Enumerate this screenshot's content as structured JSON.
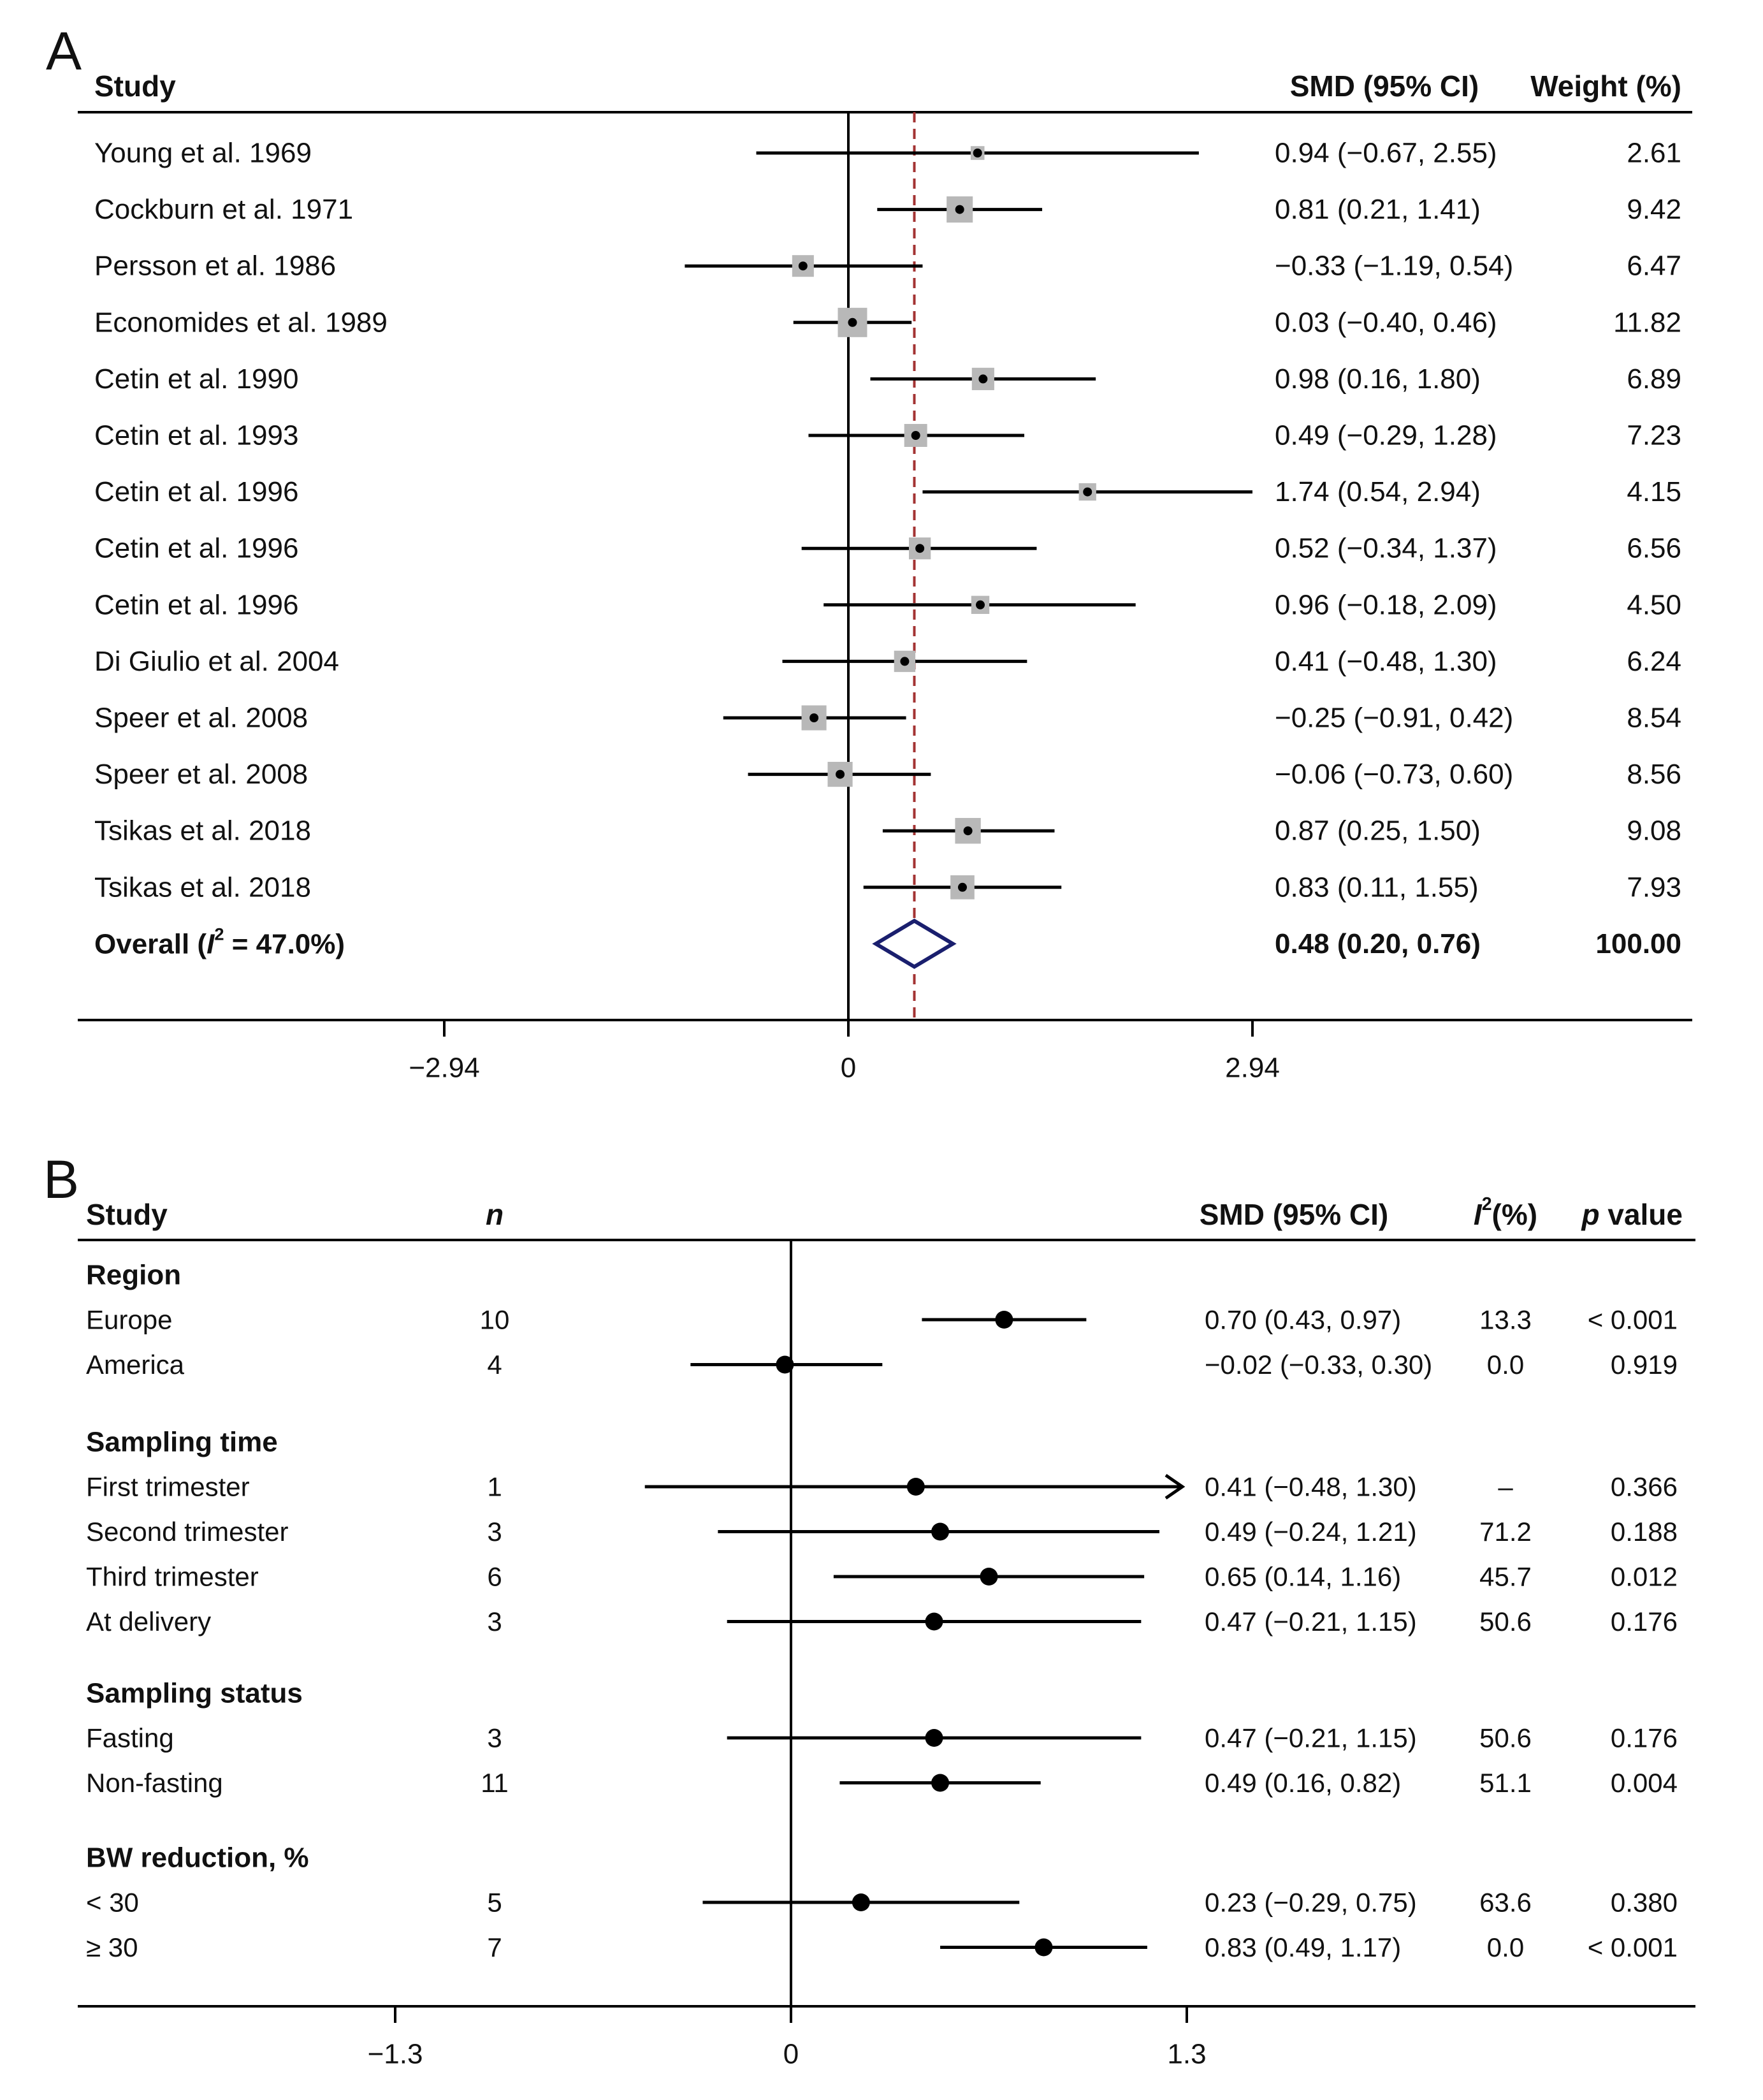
{
  "chart_data": [
    {
      "type": "forest",
      "panel_label": "A",
      "columns": {
        "study": "Study",
        "smd": "SMD (95% CI)",
        "weight": "Weight (%)"
      },
      "xaxis": {
        "ticks": [
          -2.94,
          0,
          2.94
        ],
        "tick_labels": [
          "−2.94",
          "0",
          "2.94"
        ],
        "xlim": [
          -5.64,
          6.12
        ]
      },
      "null_line": 0,
      "pooled_line": 0.48,
      "rows": [
        {
          "study": "Young et al. 1969",
          "smd": 0.94,
          "lo": -0.67,
          "hi": 2.55,
          "ci_text": "0.94 (−0.67, 2.55)",
          "weight": 2.61,
          "weight_text": "2.61"
        },
        {
          "study": "Cockburn et al. 1971",
          "smd": 0.81,
          "lo": 0.21,
          "hi": 1.41,
          "ci_text": "0.81 (0.21, 1.41)",
          "weight": 9.42,
          "weight_text": "9.42"
        },
        {
          "study": "Persson et al. 1986",
          "smd": -0.33,
          "lo": -1.19,
          "hi": 0.54,
          "ci_text": "−0.33 (−1.19, 0.54)",
          "weight": 6.47,
          "weight_text": "6.47"
        },
        {
          "study": "Economides et al. 1989",
          "smd": 0.03,
          "lo": -0.4,
          "hi": 0.46,
          "ci_text": "0.03 (−0.40, 0.46)",
          "weight": 11.82,
          "weight_text": "11.82"
        },
        {
          "study": "Cetin et al. 1990",
          "smd": 0.98,
          "lo": 0.16,
          "hi": 1.8,
          "ci_text": "0.98 (0.16, 1.80)",
          "weight": 6.89,
          "weight_text": "6.89"
        },
        {
          "study": "Cetin et al. 1993",
          "smd": 0.49,
          "lo": -0.29,
          "hi": 1.28,
          "ci_text": "0.49 (−0.29, 1.28)",
          "weight": 7.23,
          "weight_text": "7.23"
        },
        {
          "study": "Cetin et al. 1996",
          "smd": 1.74,
          "lo": 0.54,
          "hi": 2.94,
          "ci_text": "1.74 (0.54, 2.94)",
          "weight": 4.15,
          "weight_text": "4.15"
        },
        {
          "study": "Cetin et al. 1996",
          "smd": 0.52,
          "lo": -0.34,
          "hi": 1.37,
          "ci_text": "0.52 (−0.34, 1.37)",
          "weight": 6.56,
          "weight_text": "6.56"
        },
        {
          "study": "Cetin et al. 1996",
          "smd": 0.96,
          "lo": -0.18,
          "hi": 2.09,
          "ci_text": "0.96 (−0.18, 2.09)",
          "weight": 4.5,
          "weight_text": "4.50"
        },
        {
          "study": "Di Giulio et al. 2004",
          "smd": 0.41,
          "lo": -0.48,
          "hi": 1.3,
          "ci_text": "0.41 (−0.48, 1.30)",
          "weight": 6.24,
          "weight_text": "6.24"
        },
        {
          "study": "Speer et al. 2008",
          "smd": -0.25,
          "lo": -0.91,
          "hi": 0.42,
          "ci_text": "−0.25 (−0.91, 0.42)",
          "weight": 8.54,
          "weight_text": "8.54"
        },
        {
          "study": "Speer et al. 2008",
          "smd": -0.06,
          "lo": -0.73,
          "hi": 0.6,
          "ci_text": "−0.06 (−0.73, 0.60)",
          "weight": 8.56,
          "weight_text": "8.56"
        },
        {
          "study": "Tsikas et al. 2018",
          "smd": 0.87,
          "lo": 0.25,
          "hi": 1.5,
          "ci_text": "0.87 (0.25, 1.50)",
          "weight": 9.08,
          "weight_text": "9.08"
        },
        {
          "study": "Tsikas et al. 2018",
          "smd": 0.83,
          "lo": 0.11,
          "hi": 1.55,
          "ci_text": "0.83 (0.11, 1.55)",
          "weight": 7.93,
          "weight_text": "7.93"
        }
      ],
      "overall": {
        "label_prefix": "Overall",
        "i2_symbol": "I",
        "i2_sup": "2",
        "i2_rest": " = 47.0%)",
        "smd": 0.48,
        "lo": 0.2,
        "hi": 0.76,
        "ci_text": "0.48 (0.20, 0.76)",
        "weight_text": "100.00"
      },
      "colors": {
        "box": "#b8b8b8",
        "line": "#000000",
        "pooled_line": "#a33333",
        "diamond": "#1a1f6e"
      }
    },
    {
      "type": "forest",
      "panel_label": "B",
      "columns": {
        "study": "Study",
        "n": "n",
        "smd": "SMD (95% CI)",
        "i2_symbol": "I",
        "i2_sup": "2",
        "i2_rest": "(%)",
        "p_italic": "p",
        "p_rest": " value"
      },
      "xaxis": {
        "ticks": [
          -1.3,
          0,
          1.3
        ],
        "tick_labels": [
          "−1.3",
          "0",
          "1.3"
        ],
        "xlim": [
          -2.36,
          3.0
        ]
      },
      "null_line": 0,
      "groups": [
        {
          "title": "Region",
          "rows": [
            {
              "label": "Europe",
              "n": "10",
              "smd": 0.7,
              "lo": 0.43,
              "hi": 0.97,
              "ci_text": "0.70 (0.43, 0.97)",
              "i2": "13.3",
              "p": "< 0.001"
            },
            {
              "label": "America",
              "n": "4",
              "smd": -0.02,
              "lo": -0.33,
              "hi": 0.3,
              "ci_text": "−0.02 (−0.33, 0.30)",
              "i2": "0.0",
              "p": "0.919"
            }
          ]
        },
        {
          "title": "Sampling time",
          "rows": [
            {
              "label": "First trimester",
              "n": "1",
              "smd": 0.41,
              "lo": -0.48,
              "hi": 1.3,
              "ci_text": "0.41 (−0.48, 1.30)",
              "i2": "–",
              "p": "0.366",
              "arrow": true
            },
            {
              "label": "Second trimester",
              "n": "3",
              "smd": 0.49,
              "lo": -0.24,
              "hi": 1.21,
              "ci_text": "0.49 (−0.24, 1.21)",
              "i2": "71.2",
              "p": "0.188"
            },
            {
              "label": "Third trimester",
              "n": "6",
              "smd": 0.65,
              "lo": 0.14,
              "hi": 1.16,
              "ci_text": "0.65 (0.14, 1.16)",
              "i2": "45.7",
              "p": "0.012"
            },
            {
              "label": "At delivery",
              "n": "3",
              "smd": 0.47,
              "lo": -0.21,
              "hi": 1.15,
              "ci_text": "0.47 (−0.21, 1.15)",
              "i2": "50.6",
              "p": "0.176"
            }
          ]
        },
        {
          "title": "Sampling status",
          "rows": [
            {
              "label": "Fasting",
              "n": "3",
              "smd": 0.47,
              "lo": -0.21,
              "hi": 1.15,
              "ci_text": "0.47 (−0.21, 1.15)",
              "i2": "50.6",
              "p": "0.176"
            },
            {
              "label": "Non-fasting",
              "n": "11",
              "smd": 0.49,
              "lo": 0.16,
              "hi": 0.82,
              "ci_text": "0.49 (0.16, 0.82)",
              "i2": "51.1",
              "p": "0.004"
            }
          ]
        },
        {
          "title": "BW reduction, %",
          "rows": [
            {
              "label": "< 30",
              "n": "5",
              "smd": 0.23,
              "lo": -0.29,
              "hi": 0.75,
              "ci_text": "0.23 (−0.29, 0.75)",
              "i2": "63.6",
              "p": "0.380"
            },
            {
              "label": "≥ 30",
              "n": "7",
              "smd": 0.83,
              "lo": 0.49,
              "hi": 1.17,
              "ci_text": "0.83 (0.49, 1.17)",
              "i2": "0.0",
              "p": "< 0.001"
            }
          ]
        }
      ],
      "colors": {
        "dot": "#000000",
        "line": "#000000"
      }
    }
  ]
}
